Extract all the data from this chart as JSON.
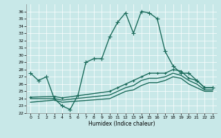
{
  "title": "",
  "xlabel": "Humidex (Indice chaleur)",
  "xlim": [
    -0.5,
    23.5
  ],
  "ylim": [
    22,
    37
  ],
  "yticks": [
    22,
    23,
    24,
    25,
    26,
    27,
    28,
    29,
    30,
    31,
    32,
    33,
    34,
    35,
    36
  ],
  "xticks": [
    0,
    1,
    2,
    3,
    4,
    5,
    6,
    7,
    8,
    9,
    10,
    11,
    12,
    13,
    14,
    15,
    16,
    17,
    18,
    19,
    20,
    21,
    22,
    23
  ],
  "bg_color": "#c8e8e8",
  "grid_color": "#b0d4d4",
  "line_color": "#1a6a5a",
  "lines": [
    {
      "x": [
        0,
        1,
        2,
        3,
        4,
        5,
        6,
        7,
        8,
        9,
        10,
        11,
        12,
        13,
        14,
        15,
        16,
        17,
        18,
        19,
        20,
        21,
        22,
        23
      ],
      "y": [
        27.5,
        26.5,
        27.0,
        24.0,
        23.0,
        22.5,
        24.5,
        29.0,
        29.5,
        29.5,
        32.5,
        34.5,
        35.8,
        33.0,
        36.0,
        35.8,
        35.0,
        30.5,
        28.5,
        27.5,
        27.5,
        26.5,
        25.5,
        25.5
      ],
      "marker": "+",
      "markersize": 4,
      "linewidth": 1.0,
      "draw_markers": true
    },
    {
      "x": [
        0,
        3,
        4,
        10,
        11,
        12,
        13,
        14,
        15,
        16,
        17,
        18,
        19,
        20,
        21,
        22,
        23
      ],
      "y": [
        24.2,
        24.3,
        24.1,
        25.0,
        25.5,
        26.0,
        26.5,
        27.0,
        27.5,
        27.5,
        27.5,
        28.0,
        27.8,
        26.8,
        26.5,
        25.5,
        25.5
      ],
      "marker": "+",
      "markersize": 3,
      "linewidth": 1.0,
      "draw_markers": true
    },
    {
      "x": [
        0,
        3,
        4,
        10,
        11,
        12,
        13,
        14,
        15,
        16,
        17,
        18,
        19,
        20,
        21,
        22,
        23
      ],
      "y": [
        24.0,
        24.0,
        23.8,
        24.5,
        25.0,
        25.5,
        25.8,
        26.5,
        26.8,
        26.8,
        27.0,
        27.5,
        27.2,
        26.5,
        26.0,
        25.2,
        25.2
      ],
      "marker": null,
      "markersize": 0,
      "linewidth": 1.0,
      "draw_markers": false
    },
    {
      "x": [
        0,
        3,
        4,
        10,
        11,
        12,
        13,
        14,
        15,
        16,
        17,
        18,
        19,
        20,
        21,
        22,
        23
      ],
      "y": [
        23.5,
        23.8,
        23.5,
        24.0,
        24.5,
        25.0,
        25.2,
        25.8,
        26.2,
        26.2,
        26.5,
        27.0,
        26.8,
        26.0,
        25.5,
        25.0,
        25.0
      ],
      "marker": null,
      "markersize": 0,
      "linewidth": 1.0,
      "draw_markers": false
    }
  ]
}
